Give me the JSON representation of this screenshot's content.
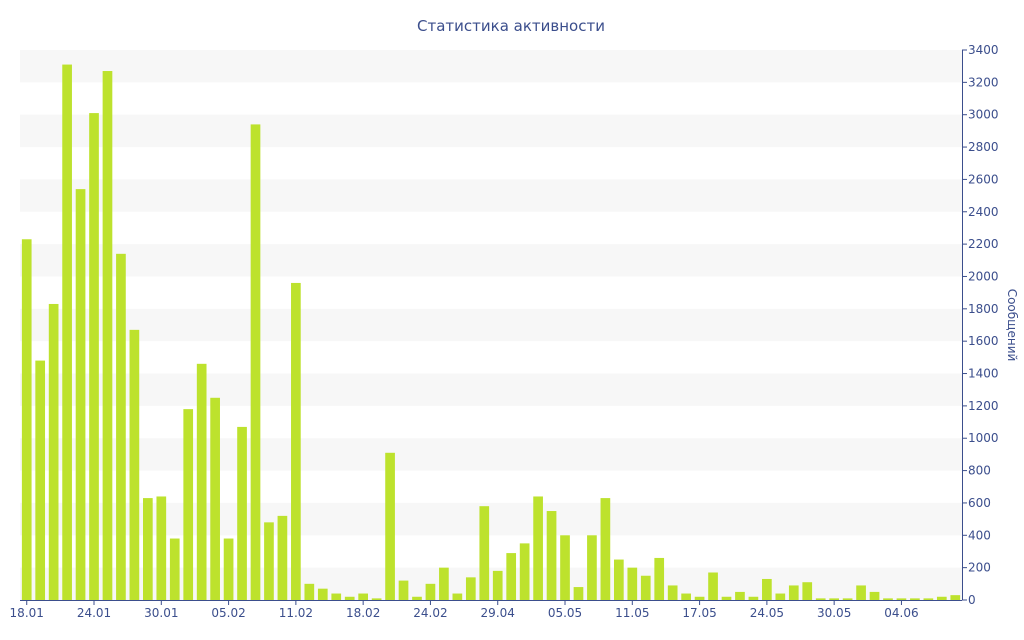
{
  "chart_data": {
    "type": "bar",
    "title": "Статистика активности",
    "ylabel": "Сообщений",
    "ylim": [
      0,
      3400
    ],
    "y_ticks": [
      0,
      200,
      400,
      600,
      800,
      1000,
      1200,
      1400,
      1600,
      1800,
      2000,
      2200,
      2400,
      2600,
      2800,
      3000,
      3200,
      3400
    ],
    "y_axis_side": "right",
    "grid": "alternating horizontal bands",
    "bar_color": "#bde22d",
    "band_color": "#f7f7f7",
    "text_color": "#3b4e8c",
    "x_tick_labels": [
      {
        "label": "18.01",
        "index": 0
      },
      {
        "label": "24.01",
        "index": 5
      },
      {
        "label": "30.01",
        "index": 10
      },
      {
        "label": "05.02",
        "index": 15
      },
      {
        "label": "11.02",
        "index": 20
      },
      {
        "label": "18.02",
        "index": 25
      },
      {
        "label": "24.02",
        "index": 30
      },
      {
        "label": "29.04",
        "index": 35
      },
      {
        "label": "05.05",
        "index": 40
      },
      {
        "label": "11.05",
        "index": 45
      },
      {
        "label": "17.05",
        "index": 50
      },
      {
        "label": "24.05",
        "index": 55
      },
      {
        "label": "30.05",
        "index": 60
      },
      {
        "label": "04.06",
        "index": 65
      }
    ],
    "values": [
      2230,
      1480,
      1830,
      3310,
      2540,
      3010,
      3270,
      2140,
      1670,
      630,
      640,
      380,
      1180,
      1460,
      1250,
      380,
      1070,
      2940,
      480,
      520,
      1960,
      100,
      70,
      40,
      20,
      40,
      10,
      910,
      120,
      20,
      100,
      200,
      40,
      140,
      580,
      180,
      290,
      350,
      640,
      550,
      400,
      80,
      400,
      630,
      250,
      200,
      150,
      260,
      90,
      40,
      20,
      170,
      20,
      50,
      20,
      130,
      40,
      90,
      110,
      10,
      10,
      10,
      90,
      50,
      10,
      10,
      10,
      10,
      20,
      30
    ]
  }
}
